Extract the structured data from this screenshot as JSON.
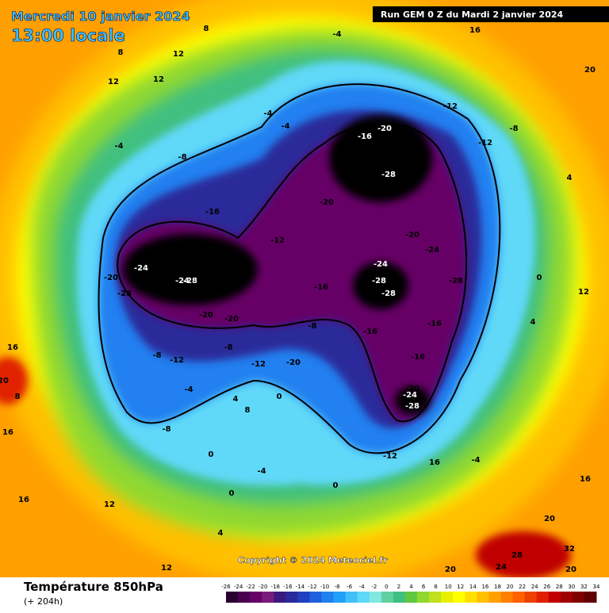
{
  "header": {
    "date": "Mercredi 10 janvier 2024",
    "time": "13:00 locale",
    "run": "Run GEM 0 Z du Mardi 2 janvier 2024"
  },
  "copyright": "Copyright © 2024 Meteociel.fr",
  "legend": {
    "title": "Température 850hPa",
    "subtitle": "(+ 204h)",
    "ticks": [
      -26,
      -24,
      -22,
      -20,
      -18,
      -16,
      -14,
      -12,
      -10,
      -8,
      -6,
      -4,
      -2,
      0,
      2,
      4,
      6,
      8,
      10,
      12,
      14,
      16,
      18,
      20,
      22,
      24,
      26,
      28,
      30,
      32,
      34
    ],
    "colors": [
      "#2a0030",
      "#4a0050",
      "#660066",
      "#7a1a7a",
      "#3a1a80",
      "#2a2a9a",
      "#2040c0",
      "#2060e0",
      "#2080f0",
      "#20a0f8",
      "#40c0f8",
      "#60d8f8",
      "#80e8e0",
      "#60d0a0",
      "#40c080",
      "#60c840",
      "#90d830",
      "#c0e020",
      "#e8f000",
      "#ffff00",
      "#ffe000",
      "#ffc000",
      "#ffa000",
      "#ff8000",
      "#ff6000",
      "#f04000",
      "#e02000",
      "#c00000",
      "#a00000",
      "#800000",
      "#600000"
    ]
  },
  "contour_labels": [
    -28,
    -28,
    -28,
    -28,
    -28,
    -28,
    -28,
    -24,
    -24,
    -24,
    -24,
    -24,
    -20,
    -20,
    -20,
    -20,
    -20,
    -20,
    -20,
    -20,
    -16,
    -16,
    -16,
    -16,
    -16,
    -16,
    -12,
    -12,
    -12,
    -12,
    -12,
    -12,
    -8,
    -8,
    -8,
    -8,
    -8,
    -8,
    -4,
    -4,
    -4,
    -4,
    -4,
    -4,
    -4,
    0,
    0,
    0,
    0,
    0,
    4,
    4,
    4,
    4,
    8,
    8,
    8,
    8,
    12,
    12,
    12,
    12,
    12,
    12,
    16,
    16,
    16,
    16,
    16,
    16,
    20,
    20,
    20,
    20,
    20,
    24,
    28,
    32
  ]
}
